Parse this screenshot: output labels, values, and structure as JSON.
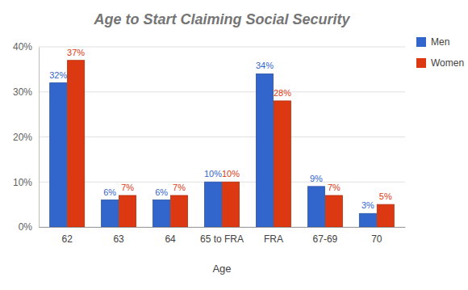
{
  "chart_data": {
    "type": "bar",
    "title": "Age to Start Claiming Social Security",
    "x_label": "Age",
    "categories": [
      "62",
      "63",
      "64",
      "65 to FRA",
      "FRA",
      "67-69",
      "70"
    ],
    "series": [
      {
        "name": "Men",
        "color": "#3366cc",
        "values": [
          32,
          6,
          6,
          10,
          34,
          9,
          3
        ],
        "value_labels": [
          "32%",
          "6%",
          "6%",
          "10%",
          "34%",
          "9%",
          "3%"
        ]
      },
      {
        "name": "Women",
        "color": "#dc3912",
        "values": [
          37,
          7,
          7,
          10,
          28,
          7,
          5
        ],
        "value_labels": [
          "37%",
          "7%",
          "7%",
          "10%",
          "28%",
          "7%",
          "5%"
        ]
      }
    ],
    "ylim": [
      0,
      40
    ],
    "yticks": [
      {
        "value": 0,
        "label": "0%"
      },
      {
        "value": 10,
        "label": "10%"
      },
      {
        "value": 20,
        "label": "20%"
      },
      {
        "value": 30,
        "label": "30%"
      },
      {
        "value": 40,
        "label": "40%"
      }
    ],
    "grid": true,
    "legend": "top-right",
    "data_labels": true
  }
}
